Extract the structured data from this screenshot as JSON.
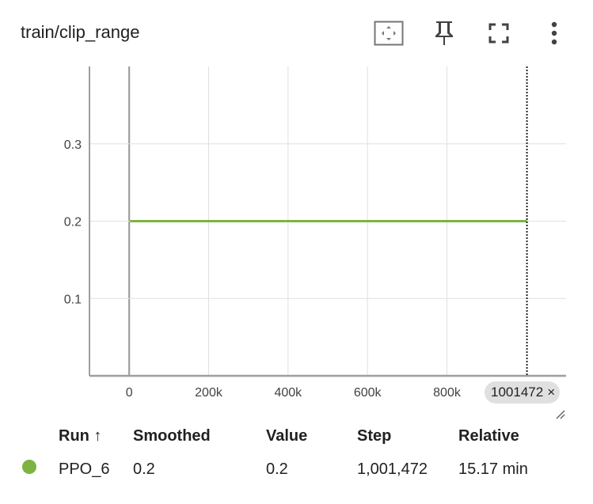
{
  "card": {
    "title": "train/clip_range",
    "tools": [
      {
        "name": "fit-domain-icon"
      },
      {
        "name": "pin-icon"
      },
      {
        "name": "fullscreen-icon"
      },
      {
        "name": "more-vert-icon"
      }
    ]
  },
  "chart_data": {
    "type": "line",
    "title": "train/clip_range",
    "xlabel": "",
    "ylabel": "",
    "x_ticks": [
      "0",
      "200k",
      "400k",
      "600k",
      "800k"
    ],
    "y_ticks": [
      "0.1",
      "0.2",
      "0.3"
    ],
    "xlim": [
      -100000,
      1100000
    ],
    "ylim": [
      0,
      0.4
    ],
    "grid": true,
    "series": [
      {
        "name": "PPO_6",
        "color": "#7cb342",
        "x": [
          2048,
          1001472
        ],
        "y": [
          0.2,
          0.2
        ]
      }
    ],
    "cursor_step": 1001472
  },
  "step_chip": {
    "label": "1001472",
    "close": "×"
  },
  "table": {
    "headers": {
      "run": "Run ↑",
      "smoothed": "Smoothed",
      "value": "Value",
      "step": "Step",
      "relative": "Relative"
    },
    "rows": [
      {
        "color": "#7cb342",
        "run": "PPO_6",
        "smoothed": "0.2",
        "value": "0.2",
        "step": "1,001,472",
        "relative": "15.17 min"
      }
    ]
  }
}
